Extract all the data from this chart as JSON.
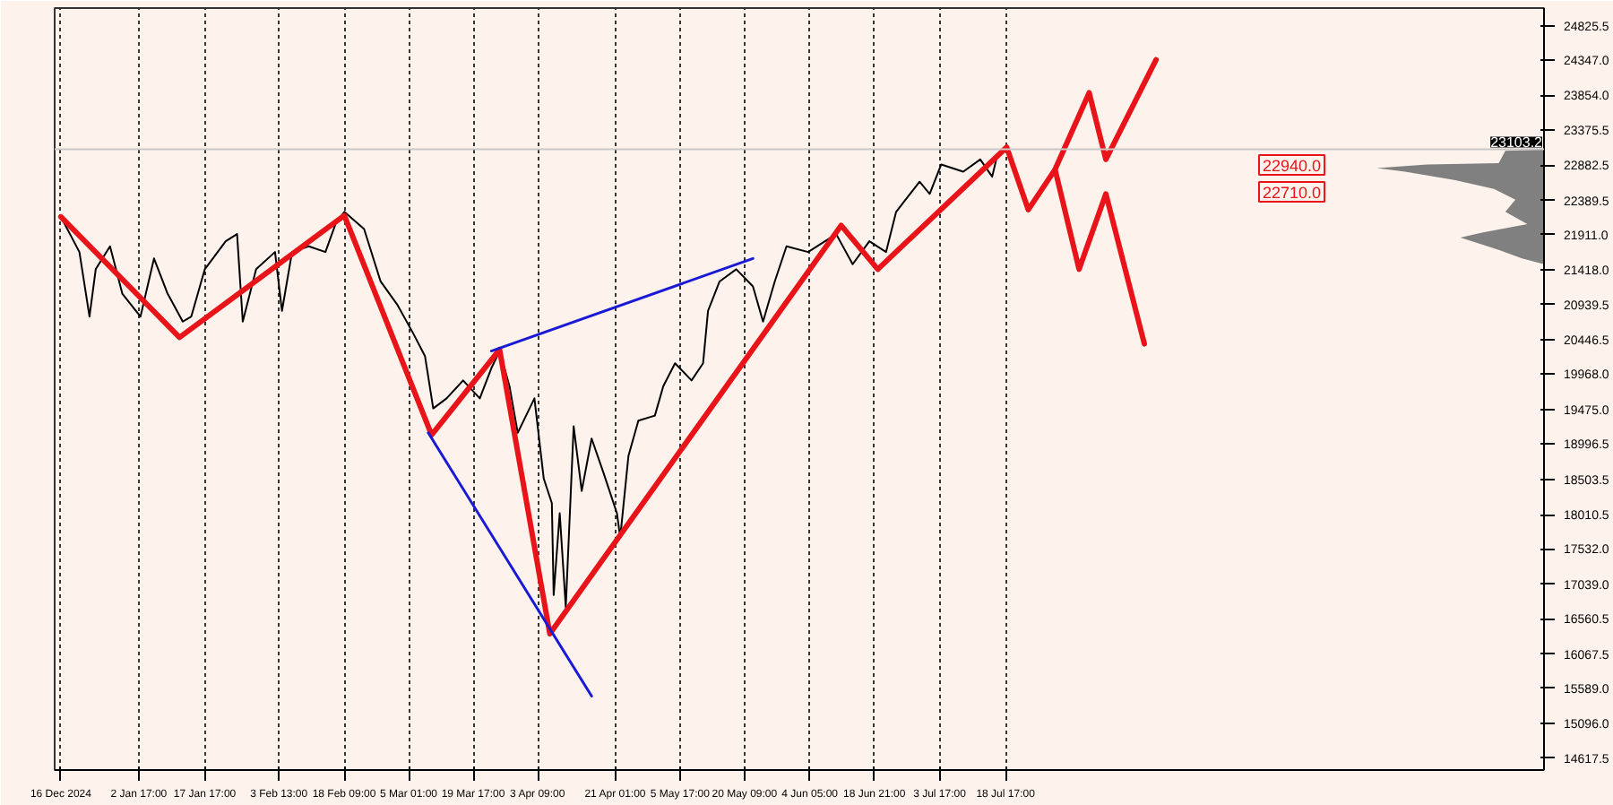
{
  "chart_data": {
    "type": "line",
    "xlim": [
      "2024-12-14T14:00",
      "2025-11-18T02:00"
    ],
    "ylim": [
      14450,
      25070
    ],
    "xticks": [
      {
        "value": "2024-12-16T00:00",
        "label": "16 Dec 2024"
      },
      {
        "value": "2025-01-02T17:00",
        "label": "2 Jan 17:00"
      },
      {
        "value": "2025-01-17T17:00",
        "label": "17 Jan 17:00"
      },
      {
        "value": "2025-02-03T13:00",
        "label": "3 Feb 13:00"
      },
      {
        "value": "2025-02-18T09:00",
        "label": "18 Feb 09:00"
      },
      {
        "value": "2025-03-05T01:00",
        "label": "5 Mar 01:00"
      },
      {
        "value": "2025-03-19T17:00",
        "label": "19 Mar 17:00"
      },
      {
        "value": "2025-04-03T09:00",
        "label": "3 Apr 09:00"
      },
      {
        "value": "2025-04-21T01:00",
        "label": "21 Apr 01:00"
      },
      {
        "value": "2025-05-05T17:00",
        "label": "5 May 17:00"
      },
      {
        "value": "2025-05-20T09:00",
        "label": "20 May 09:00"
      },
      {
        "value": "2025-06-04T05:00",
        "label": "4 Jun 05:00"
      },
      {
        "value": "2025-06-18T21:00",
        "label": "18 Jun 21:00"
      },
      {
        "value": "2025-07-03T17:00",
        "label": "3 Jul 17:00"
      },
      {
        "value": "2025-07-18T17:00",
        "label": "18 Jul 17:00"
      }
    ],
    "yticks": [
      24825.5,
      {
        "value": 24347,
        "label": "24347.0"
      },
      {
        "value": 23854,
        "label": "23854.0"
      },
      23375.5,
      22882.5,
      22389.5,
      {
        "value": 21911,
        "label": "21911.0"
      },
      {
        "value": 21418,
        "label": "21418.0"
      },
      20939.5,
      20446.5,
      {
        "value": 19968,
        "label": "19968.0"
      },
      {
        "value": 19475,
        "label": "19475.0"
      },
      18996.5,
      18503.5,
      18010.5,
      {
        "value": 17532,
        "label": "17532.0"
      },
      {
        "value": 17039,
        "label": "17039.0"
      },
      16560.5,
      16067.5,
      {
        "value": 15589,
        "label": "15589.0"
      },
      {
        "value": 15096,
        "label": "15096.0"
      },
      14617.5
    ],
    "grid": "x",
    "line_style": "solid",
    "series": [
      {
        "color": "#000000",
        "x": [
          "2024-12-16T00:00",
          "2024-12-20T05:00",
          "2024-12-22T12:00",
          "2024-12-23T22:00",
          "2024-12-27T04:00",
          "2024-12-29T23:00",
          "2025-01-03T02:00",
          "2025-01-06T04:00",
          "2025-01-09T06:00",
          "2025-01-12T17:00",
          "2025-01-14T15:00",
          "2025-01-17T17:00",
          "2025-01-22T11:00",
          "2025-01-25T01:00",
          "2025-01-26T08:00",
          "2025-01-29T09:00",
          "2025-02-02T16:00",
          "2025-02-04T06:00",
          "2025-02-06T13:00",
          "2025-02-10T08:00",
          "2025-02-14T03:00",
          "2025-02-16T10:00",
          "2025-02-18T10:00",
          "2025-02-22T22:00",
          "2025-02-26T16:00",
          "2025-03-02T10:00",
          "2025-03-06T03:00",
          "2025-03-08T18:00",
          "2025-03-10T15:00",
          "2025-03-13T16:00",
          "2025-03-17T10:00",
          "2025-03-21T05:00",
          "2025-03-23T20:00",
          "2025-03-25T17:00",
          "2025-03-27T23:00",
          "2025-03-29T20:00",
          "2025-04-02T15:00",
          "2025-04-04T18:00",
          "2025-04-06T14:00",
          "2025-04-07T00:00",
          "2025-04-08T09:00",
          "2025-04-09T18:00",
          "2025-04-11T13:00",
          "2025-04-13T09:00",
          "2025-04-15T15:00",
          "2025-04-18T08:00",
          "2025-04-21T09:00",
          "2025-04-22T03:00",
          "2025-04-24T00:00",
          "2025-04-26T06:00",
          "2025-04-30T00:00",
          "2025-05-01T22:00",
          "2025-05-04T14:00",
          "2025-05-08T08:00",
          "2025-05-10T23:00",
          "2025-05-12T02:00",
          "2025-05-14T17:00",
          "2025-05-18T12:00",
          "2025-05-22T07:00",
          "2025-05-24T14:00",
          "2025-05-27T06:00",
          "2025-05-29T22:00",
          "2025-06-03T20:00",
          "2025-06-10T05:00",
          "2025-06-13T23:00",
          "2025-06-17T18:00",
          "2025-06-21T13:00",
          "2025-06-23T20:00",
          "2025-06-29T04:00",
          "2025-07-01T11:00",
          "2025-07-04T02:00",
          "2025-07-09T02:00",
          "2025-07-12T23:00",
          "2025-07-15T16:00",
          "2025-07-16T19:00"
        ],
        "values": [
          22160,
          21670,
          20770,
          21430,
          21750,
          21090,
          20770,
          21580,
          21090,
          20700,
          20770,
          21430,
          21820,
          21920,
          20700,
          21430,
          21670,
          20850,
          21670,
          21750,
          21670,
          22060,
          22230,
          21990,
          21260,
          20940,
          20530,
          20220,
          19490,
          19630,
          19880,
          19630,
          20050,
          20290,
          19800,
          19150,
          19630,
          18510,
          18170,
          16890,
          18030,
          16720,
          19240,
          18340,
          19070,
          18590,
          18030,
          17690,
          18830,
          19320,
          19390,
          19800,
          20120,
          19880,
          20120,
          20850,
          21260,
          21430,
          21190,
          20700,
          21260,
          21750,
          21670,
          21920,
          21500,
          21820,
          21670,
          22230,
          22650,
          22480,
          22890,
          22790,
          22960,
          22720,
          23010
        ]
      },
      {
        "color": "#e8141a",
        "x": [
          "2024-12-16T00:00",
          "2025-01-11T23:00",
          "2025-02-18T10:00",
          "2025-03-10T06:00",
          "2025-03-25T17:00",
          "2025-04-06T03:00",
          "2025-06-11T08:00",
          "2025-06-19T16:00",
          "2025-07-18T23:00",
          "2025-07-23T21:00",
          "2025-07-29T23:00",
          "2025-08-06T17:00",
          "2025-08-10T12:00",
          "2025-08-21T22:00"
        ],
        "values": [
          22160,
          20480,
          22180,
          19120,
          20310,
          16350,
          22040,
          21430,
          23130,
          22260,
          22820,
          23890,
          22960,
          24350
        ]
      },
      {
        "color": "#e8141a",
        "x": [
          "2025-07-29T23:00",
          "2025-08-04T10:00",
          "2025-08-10T12:00",
          "2025-08-19T06:00"
        ],
        "values": [
          22820,
          21430,
          22480,
          20390
        ]
      },
      {
        "color": "#1a1ad6",
        "x": [
          "2025-03-09T12:00",
          "2025-04-15T15:00"
        ],
        "values": [
          19150,
          15480
        ]
      },
      {
        "color": "#1a1ad6",
        "x": [
          "2025-03-23T20:00",
          "2025-05-22T07:00"
        ],
        "values": [
          20290,
          21580
        ]
      },
      {
        "type": "area",
        "color": "#808080",
        "x": [
          "2025-11-18T02:00",
          "2025-11-09T07:00",
          "2025-11-07T19:00",
          "2025-10-22T12:00",
          "2025-10-11T02:00",
          "2025-10-17T12:00",
          "2025-10-28T22:00",
          "2025-11-06T17:00",
          "2025-11-11T14:00",
          "2025-11-09T07:00",
          "2025-11-14T07:00",
          "2025-11-04T00:00",
          "2025-10-30T02:00",
          "2025-11-07T19:00",
          "2025-11-13T02:00",
          "2025-11-18T02:00"
        ],
        "values": [
          23100,
          23080,
          22910,
          22890,
          22840,
          22790,
          22670,
          22550,
          22400,
          22230,
          22060,
          21940,
          21870,
          21700,
          21580,
          21500
        ]
      }
    ],
    "ref_lines": [
      {
        "axis": "y",
        "value": 23103.2,
        "label": "23103.2",
        "color": "#c8c8c8"
      }
    ],
    "annotations": [
      "22940.0",
      "22710.0"
    ]
  }
}
